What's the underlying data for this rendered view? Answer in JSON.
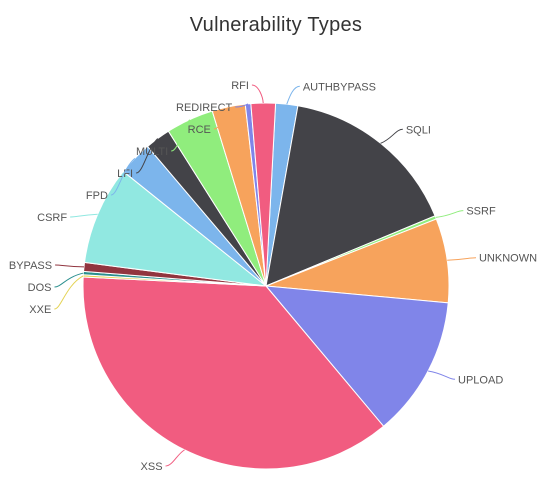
{
  "chart_data": {
    "type": "pie",
    "title": "Vulnerability Types",
    "start_angle_deg": 3,
    "slices": [
      {
        "label": "AUTHBYPASS",
        "value": 2.0,
        "color": "#7cb5ec"
      },
      {
        "label": "SQLI",
        "value": 16.3,
        "color": "#434348"
      },
      {
        "label": "SSRF",
        "value": 0.3,
        "color": "#90ed7d"
      },
      {
        "label": "UNKNOWN",
        "value": 7.6,
        "color": "#f7a35c"
      },
      {
        "label": "UPLOAD",
        "value": 12.7,
        "color": "#8085e9"
      },
      {
        "label": "XSS",
        "value": 37.7,
        "color": "#f15c80"
      },
      {
        "label": "XXE",
        "value": 0.2,
        "color": "#e4d354"
      },
      {
        "label": "DOS",
        "value": 0.3,
        "color": "#2b908f"
      },
      {
        "label": "BYPASS",
        "value": 0.8,
        "color": "#91353f"
      },
      {
        "label": "CSRF",
        "value": 8.9,
        "color": "#91e8e1"
      },
      {
        "label": "FPD",
        "value": 3.1,
        "color": "#7cb5ec"
      },
      {
        "label": "LFI",
        "value": 2.3,
        "color": "#434348"
      },
      {
        "label": "MULTI",
        "value": 4.3,
        "color": "#90ed7d"
      },
      {
        "label": "RCE",
        "value": 3.0,
        "color": "#f7a35c"
      },
      {
        "label": "REDIRECT",
        "value": 0.5,
        "color": "#8085e9"
      },
      {
        "label": "RFI",
        "value": 2.2,
        "color": "#f15c80"
      }
    ]
  }
}
